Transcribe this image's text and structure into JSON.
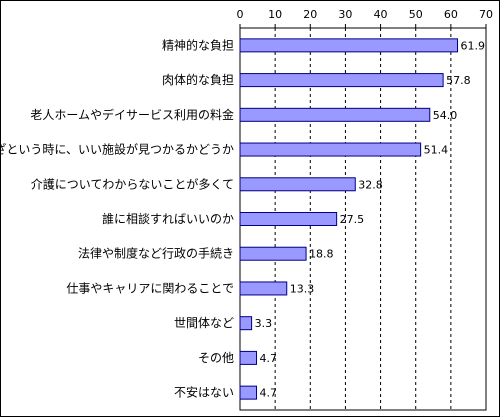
{
  "chart_data": {
    "type": "bar",
    "orientation": "horizontal",
    "title": "",
    "xlabel": "",
    "ylabel": "",
    "categories": [
      "精神的な負担",
      "肉体的な負担",
      "老人ホームやデイサービス利用の料金",
      "いざという時に、いい施設が見つかるかどうか",
      "介護についてわからないことが多くて",
      "誰に相談すればいいのか",
      "法律や制度など行政の手続き",
      "仕事やキャリアに関わることで",
      "世間体など",
      "その他",
      "不安はない"
    ],
    "values": [
      61.9,
      57.8,
      54.0,
      51.4,
      32.8,
      27.5,
      18.8,
      13.3,
      3.3,
      4.7,
      4.7
    ],
    "value_labels": [
      "61.9",
      "57.8",
      "54.0",
      "51.4",
      "32.8",
      "27.5",
      "18.8",
      "13.3",
      "3.3",
      "4.7",
      "4.7"
    ],
    "xlim": [
      0,
      70
    ],
    "ticks": [
      "0",
      "10",
      "20",
      "30",
      "40",
      "50",
      "60",
      "70"
    ],
    "tick_values": [
      0,
      10,
      20,
      30,
      40,
      50,
      60,
      70
    ],
    "grid": true,
    "axis_position": "top",
    "bar_color": "#9999ff",
    "bar_border": "#000080"
  }
}
